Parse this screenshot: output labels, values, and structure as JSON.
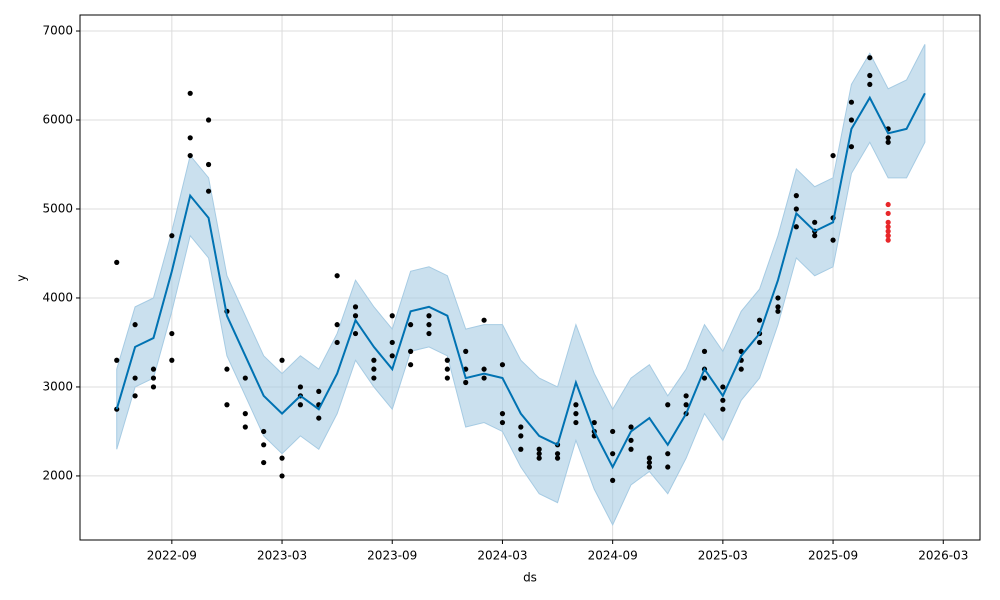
{
  "chart_data": {
    "type": "line",
    "xlabel": "ds",
    "ylabel": "y",
    "xlim": [
      "2022-04",
      "2026-05"
    ],
    "ylim": [
      1280,
      7180
    ],
    "xticks": [
      "2022-09",
      "2023-03",
      "2023-09",
      "2024-03",
      "2024-09",
      "2025-03",
      "2025-09",
      "2026-03"
    ],
    "yticks": [
      2000,
      3000,
      4000,
      5000,
      6000,
      7000
    ],
    "grid": true,
    "forecast": {
      "color": "#0072b2",
      "band_color": "#a6cbe3",
      "x": [
        "2022-06",
        "2022-07",
        "2022-08",
        "2022-09",
        "2022-10",
        "2022-11",
        "2022-12",
        "2023-01",
        "2023-02",
        "2023-03",
        "2023-04",
        "2023-05",
        "2023-06",
        "2023-07",
        "2023-08",
        "2023-09",
        "2023-10",
        "2023-11",
        "2023-12",
        "2024-01",
        "2024-02",
        "2024-03",
        "2024-04",
        "2024-05",
        "2024-06",
        "2024-07",
        "2024-08",
        "2024-09",
        "2024-10",
        "2024-11",
        "2024-12",
        "2025-01",
        "2025-02",
        "2025-03",
        "2025-04",
        "2025-05",
        "2025-06",
        "2025-07",
        "2025-08",
        "2025-09",
        "2025-10",
        "2025-11",
        "2025-12",
        "2026-01",
        "2026-02"
      ],
      "values": [
        2750,
        3450,
        3550,
        4300,
        5150,
        4900,
        3800,
        3350,
        2900,
        2700,
        2900,
        2750,
        3150,
        3750,
        3450,
        3200,
        3850,
        3900,
        3800,
        3100,
        3150,
        3100,
        2700,
        2450,
        2350,
        3050,
        2500,
        2100,
        2500,
        2650,
        2350,
        2700,
        3200,
        2900,
        3350,
        3600,
        4200,
        4950,
        4750,
        4850,
        5900,
        6250,
        5850,
        5900,
        6300
      ],
      "lower": [
        2300,
        3000,
        3100,
        3850,
        4700,
        4450,
        3350,
        2900,
        2450,
        2250,
        2450,
        2300,
        2700,
        3300,
        3000,
        2750,
        3400,
        3450,
        3350,
        2550,
        2600,
        2500,
        2100,
        1800,
        1700,
        2400,
        1850,
        1450,
        1900,
        2050,
        1800,
        2200,
        2700,
        2400,
        2850,
        3100,
        3700,
        4450,
        4250,
        4350,
        5400,
        5750,
        5350,
        5350,
        5750
      ],
      "upper": [
        3200,
        3900,
        4000,
        4750,
        5600,
        5350,
        4250,
        3800,
        3350,
        3150,
        3350,
        3200,
        3600,
        4200,
        3900,
        3650,
        4300,
        4350,
        4250,
        3650,
        3700,
        3700,
        3300,
        3100,
        3000,
        3700,
        3150,
        2750,
        3100,
        3250,
        2900,
        3200,
        3700,
        3400,
        3850,
        4100,
        4700,
        5450,
        5250,
        5350,
        6400,
        6750,
        6350,
        6450,
        6850
      ]
    },
    "observed": {
      "color": "#000000",
      "x": [
        "2022-06",
        "2022-06",
        "2022-06",
        "2022-07",
        "2022-07",
        "2022-07",
        "2022-08",
        "2022-08",
        "2022-08",
        "2022-09",
        "2022-09",
        "2022-09",
        "2022-10",
        "2022-10",
        "2022-10",
        "2022-11",
        "2022-11",
        "2022-11",
        "2022-12",
        "2022-12",
        "2022-12",
        "2023-01",
        "2023-01",
        "2023-01",
        "2023-02",
        "2023-02",
        "2023-02",
        "2023-03",
        "2023-03",
        "2023-03",
        "2023-04",
        "2023-04",
        "2023-04",
        "2023-05",
        "2023-05",
        "2023-05",
        "2023-06",
        "2023-06",
        "2023-06",
        "2023-07",
        "2023-07",
        "2023-07",
        "2023-08",
        "2023-08",
        "2023-08",
        "2023-09",
        "2023-09",
        "2023-09",
        "2023-10",
        "2023-10",
        "2023-10",
        "2023-11",
        "2023-11",
        "2023-11",
        "2023-12",
        "2023-12",
        "2023-12",
        "2024-01",
        "2024-01",
        "2024-01",
        "2024-02",
        "2024-02",
        "2024-02",
        "2024-03",
        "2024-03",
        "2024-03",
        "2024-04",
        "2024-04",
        "2024-04",
        "2024-05",
        "2024-05",
        "2024-05",
        "2024-06",
        "2024-06",
        "2024-06",
        "2024-07",
        "2024-07",
        "2024-07",
        "2024-08",
        "2024-08",
        "2024-08",
        "2024-09",
        "2024-09",
        "2024-09",
        "2024-10",
        "2024-10",
        "2024-10",
        "2024-11",
        "2024-11",
        "2024-11",
        "2024-12",
        "2024-12",
        "2024-12",
        "2025-01",
        "2025-01",
        "2025-01",
        "2025-02",
        "2025-02",
        "2025-02",
        "2025-03",
        "2025-03",
        "2025-03",
        "2025-04",
        "2025-04",
        "2025-04",
        "2025-05",
        "2025-05",
        "2025-05",
        "2025-06",
        "2025-06",
        "2025-06",
        "2025-07",
        "2025-07",
        "2025-07",
        "2025-08",
        "2025-08",
        "2025-08",
        "2025-09",
        "2025-09",
        "2025-09",
        "2025-10",
        "2025-10",
        "2025-10",
        "2025-11",
        "2025-11",
        "2025-11",
        "2025-12",
        "2025-12",
        "2025-12"
      ],
      "values": [
        2750,
        3300,
        4400,
        3700,
        3100,
        2900,
        3000,
        3200,
        3100,
        3600,
        4700,
        3300,
        5600,
        6300,
        5800,
        5500,
        6000,
        5200,
        3850,
        3200,
        2800,
        3100,
        2700,
        2550,
        2500,
        2350,
        2150,
        2000,
        2200,
        3300,
        3000,
        2800,
        2900,
        2650,
        2800,
        2950,
        3500,
        4250,
        3700,
        3900,
        3800,
        3600,
        3300,
        3200,
        3100,
        3500,
        3800,
        3350,
        3400,
        3700,
        3250,
        3600,
        3800,
        3700,
        3200,
        3100,
        3300,
        3400,
        3050,
        3200,
        3750,
        3200,
        3100,
        3250,
        2700,
        2600,
        2450,
        2300,
        2550,
        2250,
        2200,
        2300,
        2250,
        2350,
        2200,
        2800,
        2700,
        2600,
        2500,
        2450,
        2600,
        2250,
        2500,
        1950,
        2400,
        2550,
        2300,
        2200,
        2150,
        2100,
        2250,
        2800,
        2100,
        2700,
        2800,
        2900,
        3200,
        3400,
        3100,
        2850,
        3000,
        2750,
        3400,
        3200,
        3300,
        3600,
        3750,
        3500,
        3900,
        4000,
        3850,
        5000,
        5150,
        4800,
        4700,
        4750,
        4850,
        4650,
        4900,
        5600,
        5700,
        6000,
        6200,
        6500,
        6400,
        6700,
        5800,
        5900,
        5750
      ]
    },
    "actual": {
      "color": "#e8272a",
      "x": [
        "2025-12",
        "2025-12",
        "2025-12",
        "2025-12",
        "2025-12",
        "2025-12",
        "2025-12",
        "2025-12"
      ],
      "values": [
        4750,
        4700,
        4650,
        4800,
        5050,
        4950,
        4850,
        4700
      ]
    }
  }
}
